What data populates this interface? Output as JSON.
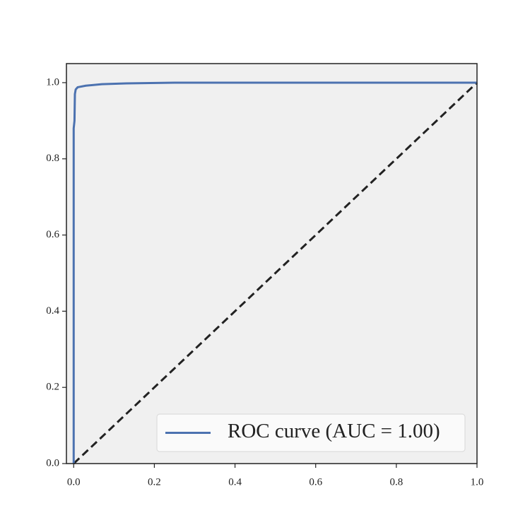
{
  "chart_data": {
    "type": "line",
    "x": [
      0,
      0,
      0.002,
      0.003,
      0.005,
      0.01,
      0.03,
      0.07,
      0.13,
      0.25,
      1.0
    ],
    "series": [
      {
        "name": "ROC curve (AUC = 1.00)",
        "color": "#4c72b0",
        "values": [
          0,
          0.88,
          0.9,
          0.97,
          0.982,
          0.988,
          0.992,
          0.996,
          0.998,
          1.0,
          1.0
        ]
      }
    ],
    "reference_line": {
      "x": [
        0,
        1
      ],
      "y": [
        0,
        1
      ],
      "color": "#222222",
      "dashed": true
    },
    "xlim": [
      -0.018,
      1.0
    ],
    "ylim": [
      0,
      1.05
    ],
    "xticks": [
      {
        "value": 0,
        "label": "0.0"
      },
      {
        "value": 0.2,
        "label": "0.2"
      },
      {
        "value": 0.4,
        "label": "0.4"
      },
      {
        "value": 0.6,
        "label": "0.6"
      },
      {
        "value": 0.8,
        "label": "0.8"
      },
      {
        "value": 1.0,
        "label": "1.0"
      }
    ],
    "yticks": [
      {
        "value": 0,
        "label": "0.0"
      },
      {
        "value": 0.2,
        "label": "0.2"
      },
      {
        "value": 0.4,
        "label": "0.4"
      },
      {
        "value": 0.6,
        "label": "0.6"
      },
      {
        "value": 0.8,
        "label": "0.8"
      },
      {
        "value": 1.0,
        "label": "1.0"
      }
    ],
    "background": "#f0f0f0",
    "legend": "lower right",
    "grid": false
  }
}
